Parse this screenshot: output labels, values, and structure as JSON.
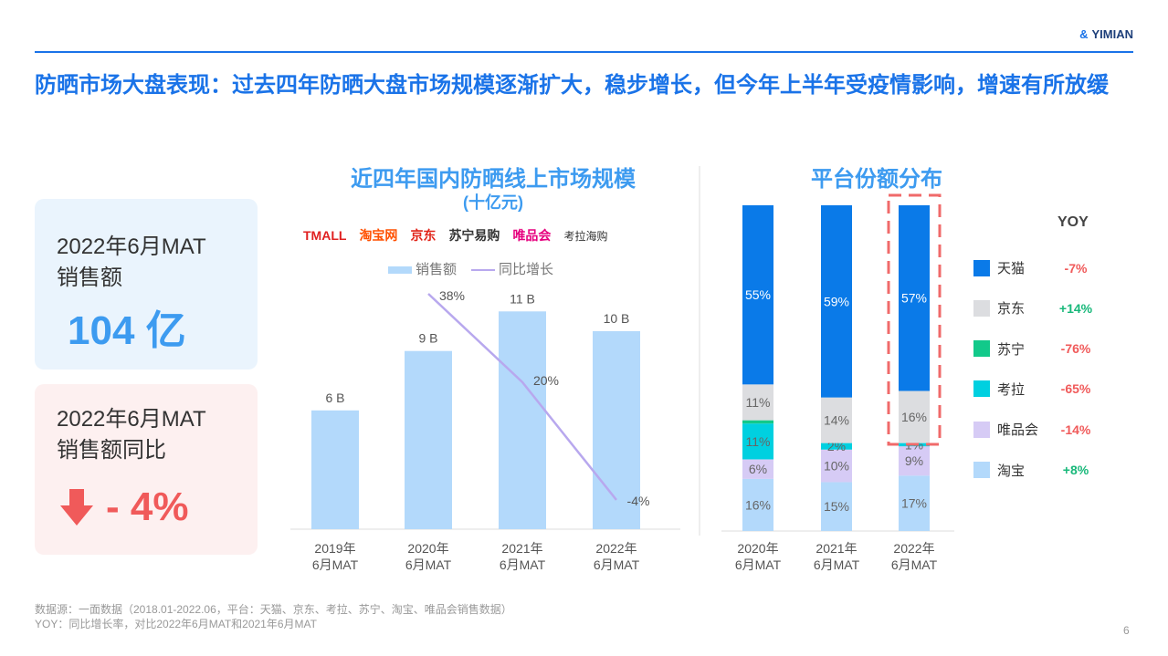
{
  "brand": "YIMIAN",
  "title": "防晒市场大盘表现：过去四年防晒大盘市场规模逐渐扩大，稳步增长，但今年上半年受疫情影响，增速有所放缓",
  "cards": [
    {
      "label_line1": "2022年6月MAT",
      "label_line2": "销售额",
      "value": "104 亿",
      "color": "#3d9bf0"
    },
    {
      "label_line1": "2022年6月MAT",
      "label_line2": "销售额同比",
      "value": "- 4%",
      "direction": "down",
      "icon": "arrow-down-icon",
      "color": "#f05a5a"
    }
  ],
  "platform_logos": [
    "TMALL",
    "淘宝网",
    "京东",
    "苏宁易购",
    "唯品会",
    "考拉海购"
  ],
  "chart_data": [
    {
      "type": "bar",
      "title": "近四年国内防晒线上市场规模",
      "subtitle": "(十亿元)",
      "categories": [
        "2019年\n6月MAT",
        "2020年\n6月MAT",
        "2021年\n6月MAT",
        "2022年\n6月MAT"
      ],
      "series": [
        {
          "name": "销售额",
          "type": "bar",
          "values": [
            6,
            9,
            11,
            10
          ],
          "labels": [
            "6 B",
            "9 B",
            "11 B",
            "10 B"
          ],
          "color": "#b3d9fb"
        },
        {
          "name": "同比增长",
          "type": "line",
          "values": [
            null,
            38,
            20,
            -4
          ],
          "labels": [
            "",
            "38%",
            "20%",
            "-4%"
          ],
          "color": "#b8a8ee"
        }
      ],
      "legend": "top"
    },
    {
      "type": "bar",
      "stacked": true,
      "title": "平台份额分布",
      "categories": [
        "2020年\n6月MAT",
        "2021年\n6月MAT",
        "2022年\n6月MAT"
      ],
      "series": [
        {
          "name": "淘宝",
          "values": [
            16,
            15,
            17
          ],
          "color": "#b3d9fb",
          "yoy": "+8%"
        },
        {
          "name": "唯品会",
          "values": [
            6,
            10,
            9
          ],
          "color": "#d6cbf5",
          "yoy": "-14%"
        },
        {
          "name": "考拉",
          "values": [
            11,
            2,
            1
          ],
          "color": "#00d0e0",
          "yoy": "-65%"
        },
        {
          "name": "苏宁",
          "values": [
            1,
            0,
            0
          ],
          "color": "#12c98a",
          "yoy": "-76%"
        },
        {
          "name": "京东",
          "values": [
            11,
            14,
            16
          ],
          "color": "#dcdde0",
          "yoy": "+14%"
        },
        {
          "name": "天猫",
          "values": [
            55,
            59,
            57
          ],
          "color": "#0a7ae8",
          "yoy": "-7%"
        }
      ],
      "legend": "right",
      "legend_header": "YOY",
      "highlight_category": "2022年\n6月MAT",
      "yoy_colors": {
        "positive": "#18b87a",
        "negative": "#f05a5a"
      }
    }
  ],
  "footer": {
    "line1": "数据源：一面数据（2018.01-2022.06，平台：天猫、京东、考拉、苏宁、淘宝、唯品会销售数据）",
    "line2": "YOY：同比增长率，对比2022年6月MAT和2021年6月MAT"
  },
  "page_number": "6"
}
